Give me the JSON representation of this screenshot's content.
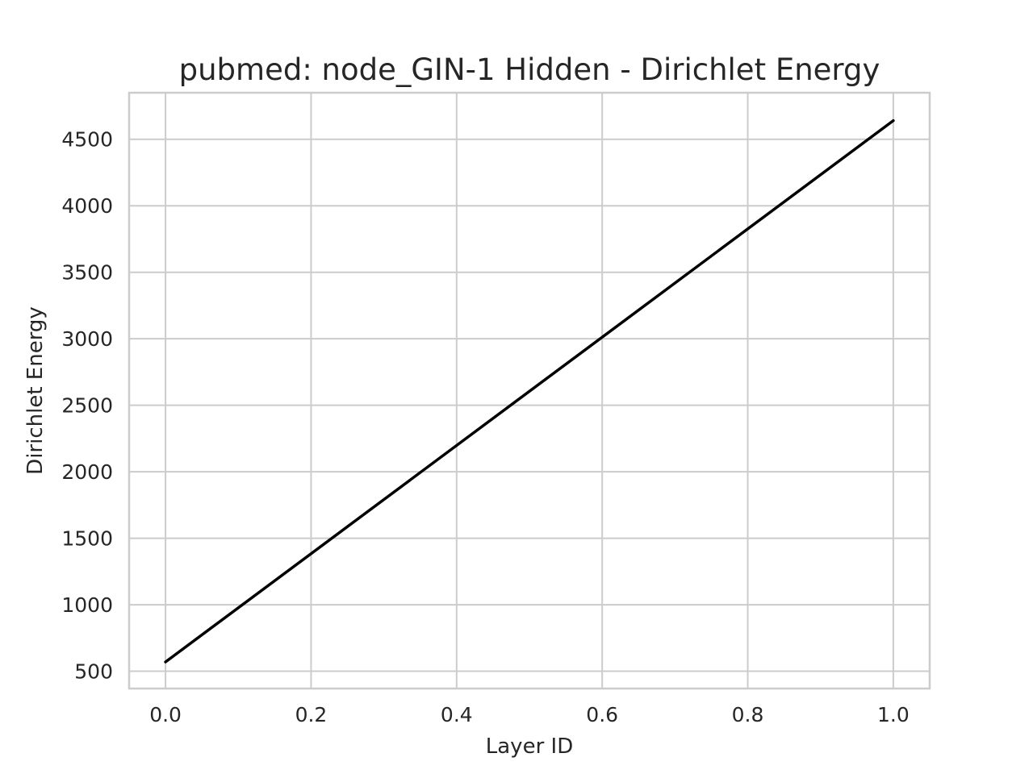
{
  "chart_data": {
    "type": "line",
    "title": "pubmed: node_GIN-1 Hidden - Dirichlet Energy",
    "xlabel": "Layer ID",
    "ylabel": "Dirichlet Energy",
    "xlim": [
      -0.05,
      1.05
    ],
    "ylim": [
      370,
      4850
    ],
    "xticks": [
      0.0,
      0.2,
      0.4,
      0.6,
      0.8,
      1.0
    ],
    "xtick_labels": [
      "0.0",
      "0.2",
      "0.4",
      "0.6",
      "0.8",
      "1.0"
    ],
    "yticks": [
      500,
      1000,
      1500,
      2000,
      2500,
      3000,
      3500,
      4000,
      4500
    ],
    "ytick_labels": [
      "500",
      "1000",
      "1500",
      "2000",
      "2500",
      "3000",
      "3500",
      "4000",
      "4500"
    ],
    "grid": true,
    "legend": "none",
    "series": [
      {
        "color": "#000000",
        "x": [
          0.0,
          1.0
        ],
        "y": [
          570,
          4640
        ]
      }
    ]
  }
}
